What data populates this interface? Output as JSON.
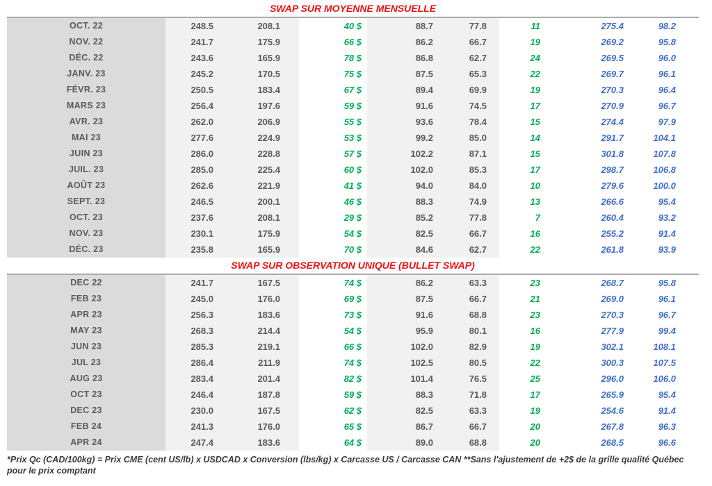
{
  "colors": {
    "title_red": "#EE1111",
    "value_green": "#00AC50",
    "value_blue": "#3D6EC9",
    "text_gray": "#595959",
    "month_band_gray": "#dbdbdb",
    "value_band_gray": "#f1f1f1",
    "table_top_border": "#ababab"
  },
  "chart_data": [
    {
      "type": "table",
      "title": "SWAP SUR MOYENNE MENSUELLE",
      "header_visible": false,
      "rows": [
        [
          "OCT. 22",
          "248.5",
          "208.1",
          "40 $",
          "88.7",
          "77.8",
          "11",
          "275.4",
          "98.2"
        ],
        [
          "NOV. 22",
          "241.7",
          "175.9",
          "66 $",
          "86.2",
          "66.7",
          "19",
          "269.2",
          "95.8"
        ],
        [
          "DÉC. 22",
          "243.6",
          "165.9",
          "78 $",
          "86.8",
          "62.7",
          "24",
          "269.5",
          "96.0"
        ],
        [
          "JANV. 23",
          "245.2",
          "170.5",
          "75 $",
          "87.5",
          "65.3",
          "22",
          "269.7",
          "96.1"
        ],
        [
          "FÉVR. 23",
          "250.5",
          "183.4",
          "67 $",
          "89.4",
          "69.9",
          "19",
          "270.3",
          "96.4"
        ],
        [
          "MARS 23",
          "256.4",
          "197.6",
          "59 $",
          "91.6",
          "74.5",
          "17",
          "270.9",
          "96.7"
        ],
        [
          "AVR. 23",
          "262.0",
          "206.9",
          "55 $",
          "93.6",
          "78.4",
          "15",
          "274.4",
          "97.9"
        ],
        [
          "MAI 23",
          "277.6",
          "224.9",
          "53 $",
          "99.2",
          "85.0",
          "14",
          "291.7",
          "104.1"
        ],
        [
          "JUIN 23",
          "286.0",
          "228.8",
          "57 $",
          "102.2",
          "87.1",
          "15",
          "301.8",
          "107.8"
        ],
        [
          "JUIL. 23",
          "285.0",
          "225.4",
          "60 $",
          "102.0",
          "85.3",
          "17",
          "298.7",
          "106.8"
        ],
        [
          "AOÛT 23",
          "262.6",
          "221.9",
          "41 $",
          "94.0",
          "84.0",
          "10",
          "279.6",
          "100.0"
        ],
        [
          "SEPT. 23",
          "246.5",
          "200.1",
          "46 $",
          "88.3",
          "74.9",
          "13",
          "266.6",
          "95.4"
        ],
        [
          "OCT. 23",
          "237.6",
          "208.1",
          "29 $",
          "85.2",
          "77.8",
          "7",
          "260.4",
          "93.2"
        ],
        [
          "NOV. 23",
          "230.1",
          "175.9",
          "54 $",
          "82.5",
          "66.7",
          "16",
          "255.2",
          "91.4"
        ],
        [
          "DÉC. 23",
          "235.8",
          "165.9",
          "70 $",
          "84.6",
          "62.7",
          "22",
          "261.8",
          "93.9"
        ]
      ]
    },
    {
      "type": "table",
      "title": "SWAP SUR OBSERVATION UNIQUE (BULLET SWAP)",
      "header_visible": false,
      "rows": [
        [
          "DEC 22",
          "241.7",
          "167.5",
          "74 $",
          "86.2",
          "63.3",
          "23",
          "268.7",
          "95.8"
        ],
        [
          "FEB 23",
          "245.0",
          "176.0",
          "69 $",
          "87.5",
          "66.7",
          "21",
          "269.0",
          "96.1"
        ],
        [
          "APR 23",
          "256.3",
          "183.6",
          "73 $",
          "91.6",
          "68.8",
          "23",
          "270.3",
          "96.7"
        ],
        [
          "MAY 23",
          "268.3",
          "214.4",
          "54 $",
          "95.9",
          "80.1",
          "16",
          "277.9",
          "99.4"
        ],
        [
          "JUN 23",
          "285.3",
          "219.1",
          "66 $",
          "102.0",
          "82.9",
          "19",
          "302.1",
          "108.1"
        ],
        [
          "JUL 23",
          "286.4",
          "211.9",
          "74 $",
          "102.5",
          "80.5",
          "22",
          "300.3",
          "107.5"
        ],
        [
          "AUG 23",
          "283.4",
          "201.4",
          "82 $",
          "101.4",
          "76.5",
          "25",
          "296.0",
          "106.0"
        ],
        [
          "OCT 23",
          "246.4",
          "187.8",
          "59 $",
          "88.3",
          "71.8",
          "17",
          "265.9",
          "95.4"
        ],
        [
          "DEC 23",
          "230.0",
          "167.5",
          "62 $",
          "82.5",
          "63.3",
          "19",
          "254.6",
          "91.4"
        ],
        [
          "FEB 24",
          "241.3",
          "176.0",
          "65 $",
          "86.7",
          "66.7",
          "20",
          "267.8",
          "96.3"
        ],
        [
          "APR 24",
          "247.4",
          "183.6",
          "64 $",
          "89.0",
          "68.8",
          "20",
          "268.5",
          "96.6"
        ]
      ]
    }
  ],
  "footnote": "*Prix Qc (CAD/100kg) = Prix CME (cent US/lb) x USDCAD x Conversion (lbs/kg) x Carcasse US / Carcasse CAN **Sans l'ajustement de +2$ de la grille qualité Québec pour le prix comptant"
}
